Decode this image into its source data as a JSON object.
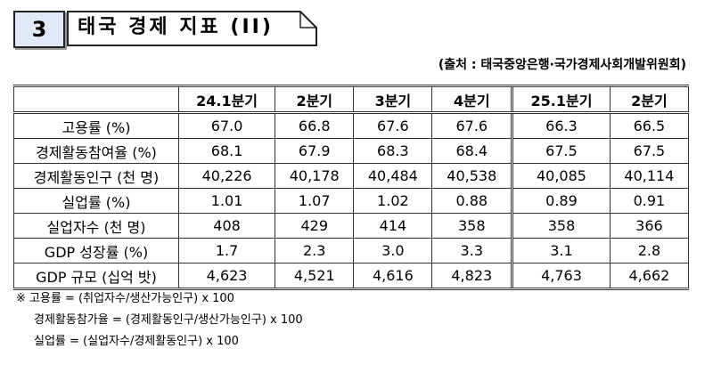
{
  "header": {
    "number": "3",
    "title": "태국 경제 지표 (II)"
  },
  "source": "(출처 : 태국중앙은행·국가경제사회개발위원회)",
  "table": {
    "columns": [
      "24.1분기",
      "2분기",
      "3분기",
      "4분기",
      "25.1분기",
      "2분기"
    ],
    "rows": [
      [
        "고용률 (%)",
        "67.0",
        "66.8",
        "67.6",
        "67.6",
        "66.3",
        "66.5"
      ],
      [
        "경제활동참여율 (%)",
        "68.1",
        "67.9",
        "68.3",
        "68.4",
        "67.5",
        "67.5"
      ],
      [
        "경제활동인구 (천 명)",
        "40,226",
        "40,178",
        "40,484",
        "40,538",
        "40,085",
        "40,114"
      ],
      [
        "실업률 (%)",
        "1.01",
        "1.07",
        "1.02",
        "0.88",
        "0.89",
        "0.91"
      ],
      [
        "실업자수 (천 명)",
        "408",
        "429",
        "414",
        "358",
        "358",
        "366"
      ],
      [
        "GDP 성장률 (%)",
        "1.7",
        "2.3",
        "3.0",
        "3.3",
        "3.1",
        "2.8"
      ],
      [
        "GDP 규모 (십억 밧)",
        "4,623",
        "4,521",
        "4,616",
        "4,823",
        "4,763",
        "4,662"
      ]
    ]
  },
  "notes": [
    "※ 고용률 = (취업자수/생산가능인구) x 100",
    "경제활동참가율 = (경제활동인구/생산가능인구) x 100",
    "실업률 = (실업자수/경제활동인구) x 100"
  ]
}
